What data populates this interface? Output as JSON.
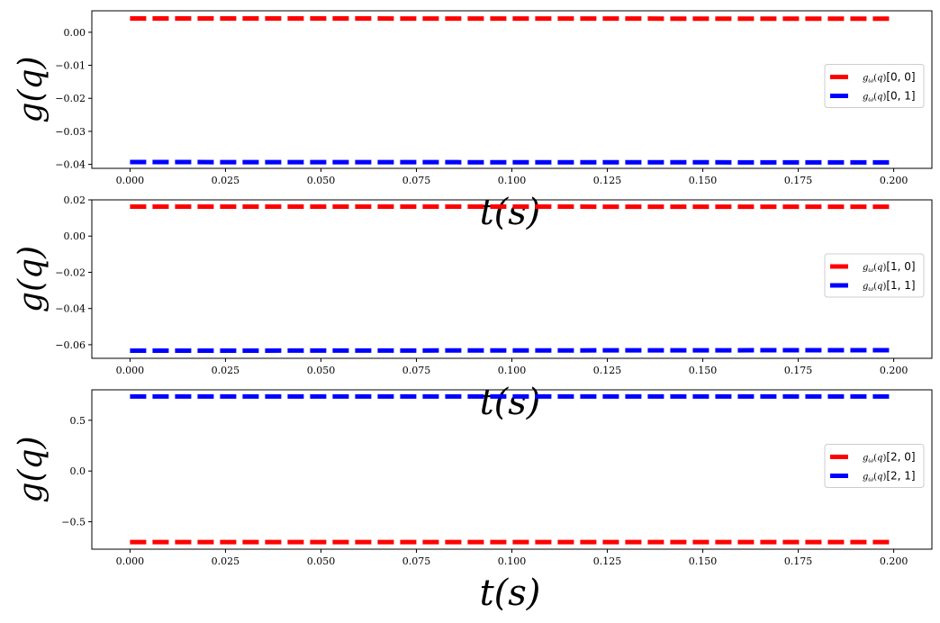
{
  "chart_data": [
    {
      "type": "line",
      "xlabel": "t(s)",
      "ylabel": "g(q)",
      "xlim": [
        -0.01,
        0.21
      ],
      "ylim": [
        -0.0412,
        0.0065
      ],
      "x": [
        0.0,
        0.2
      ],
      "xticks": [
        0.0,
        0.025,
        0.05,
        0.075,
        0.1,
        0.125,
        0.15,
        0.175,
        0.2
      ],
      "xtick_labels": [
        "0.000",
        "0.025",
        "0.050",
        "0.075",
        "0.100",
        "0.125",
        "0.150",
        "0.175",
        "0.200"
      ],
      "yticks": [
        0.0,
        -0.01,
        -0.02,
        -0.03,
        -0.04
      ],
      "ytick_labels": [
        "0.00",
        "−0.01",
        "−0.02",
        "−0.03",
        "−0.04"
      ],
      "legend_position": "center-right",
      "series": [
        {
          "name": "g_ω(q)[0, 0]",
          "legend_index": "[0, 0]",
          "color": "#ff0000",
          "style": "dashed",
          "values": [
            0.0042,
            0.0041
          ]
        },
        {
          "name": "g_ω(q)[0, 1]",
          "legend_index": "[0, 1]",
          "color": "#0000ff",
          "style": "dashed",
          "values": [
            -0.0393,
            -0.0394
          ]
        }
      ]
    },
    {
      "type": "line",
      "xlabel": "t(s)",
      "ylabel": "g(q)",
      "xlim": [
        -0.01,
        0.21
      ],
      "ylim": [
        -0.0675,
        0.02
      ],
      "x": [
        0.0,
        0.2
      ],
      "xticks": [
        0.0,
        0.025,
        0.05,
        0.075,
        0.1,
        0.125,
        0.15,
        0.175,
        0.2
      ],
      "xtick_labels": [
        "0.000",
        "0.025",
        "0.050",
        "0.075",
        "0.100",
        "0.125",
        "0.150",
        "0.175",
        "0.200"
      ],
      "yticks": [
        0.02,
        0.0,
        -0.02,
        -0.04,
        -0.06
      ],
      "ytick_labels": [
        "0.02",
        "0.00",
        "−0.02",
        "−0.04",
        "−0.06"
      ],
      "legend_position": "center-right",
      "series": [
        {
          "name": "g_ω(q)[1, 0]",
          "legend_index": "[1, 0]",
          "color": "#ff0000",
          "style": "dashed",
          "values": [
            0.0163,
            0.0162
          ]
        },
        {
          "name": "g_ω(q)[1, 1]",
          "legend_index": "[1, 1]",
          "color": "#0000ff",
          "style": "dashed",
          "values": [
            -0.0633,
            -0.063
          ]
        }
      ]
    },
    {
      "type": "line",
      "xlabel": "t(s)",
      "ylabel": "g(q)",
      "xlim": [
        -0.01,
        0.21
      ],
      "ylim": [
        -0.77,
        0.8
      ],
      "x": [
        0.0,
        0.2
      ],
      "xticks": [
        0.0,
        0.025,
        0.05,
        0.075,
        0.1,
        0.125,
        0.15,
        0.175,
        0.2
      ],
      "xtick_labels": [
        "0.000",
        "0.025",
        "0.050",
        "0.075",
        "0.100",
        "0.125",
        "0.150",
        "0.175",
        "0.200"
      ],
      "yticks": [
        0.5,
        0.0,
        -0.5
      ],
      "ytick_labels": [
        "0.5",
        "0.0",
        "−0.5"
      ],
      "legend_position": "center-right",
      "series": [
        {
          "name": "g_ω(q)[2, 0]",
          "legend_index": "[2, 0]",
          "color": "#ff0000",
          "style": "dashed",
          "values": [
            -0.7,
            -0.7
          ]
        },
        {
          "name": "g_ω(q)[2, 1]",
          "legend_index": "[2, 1]",
          "color": "#0000ff",
          "style": "dashed",
          "values": [
            0.735,
            0.735
          ]
        }
      ]
    }
  ]
}
